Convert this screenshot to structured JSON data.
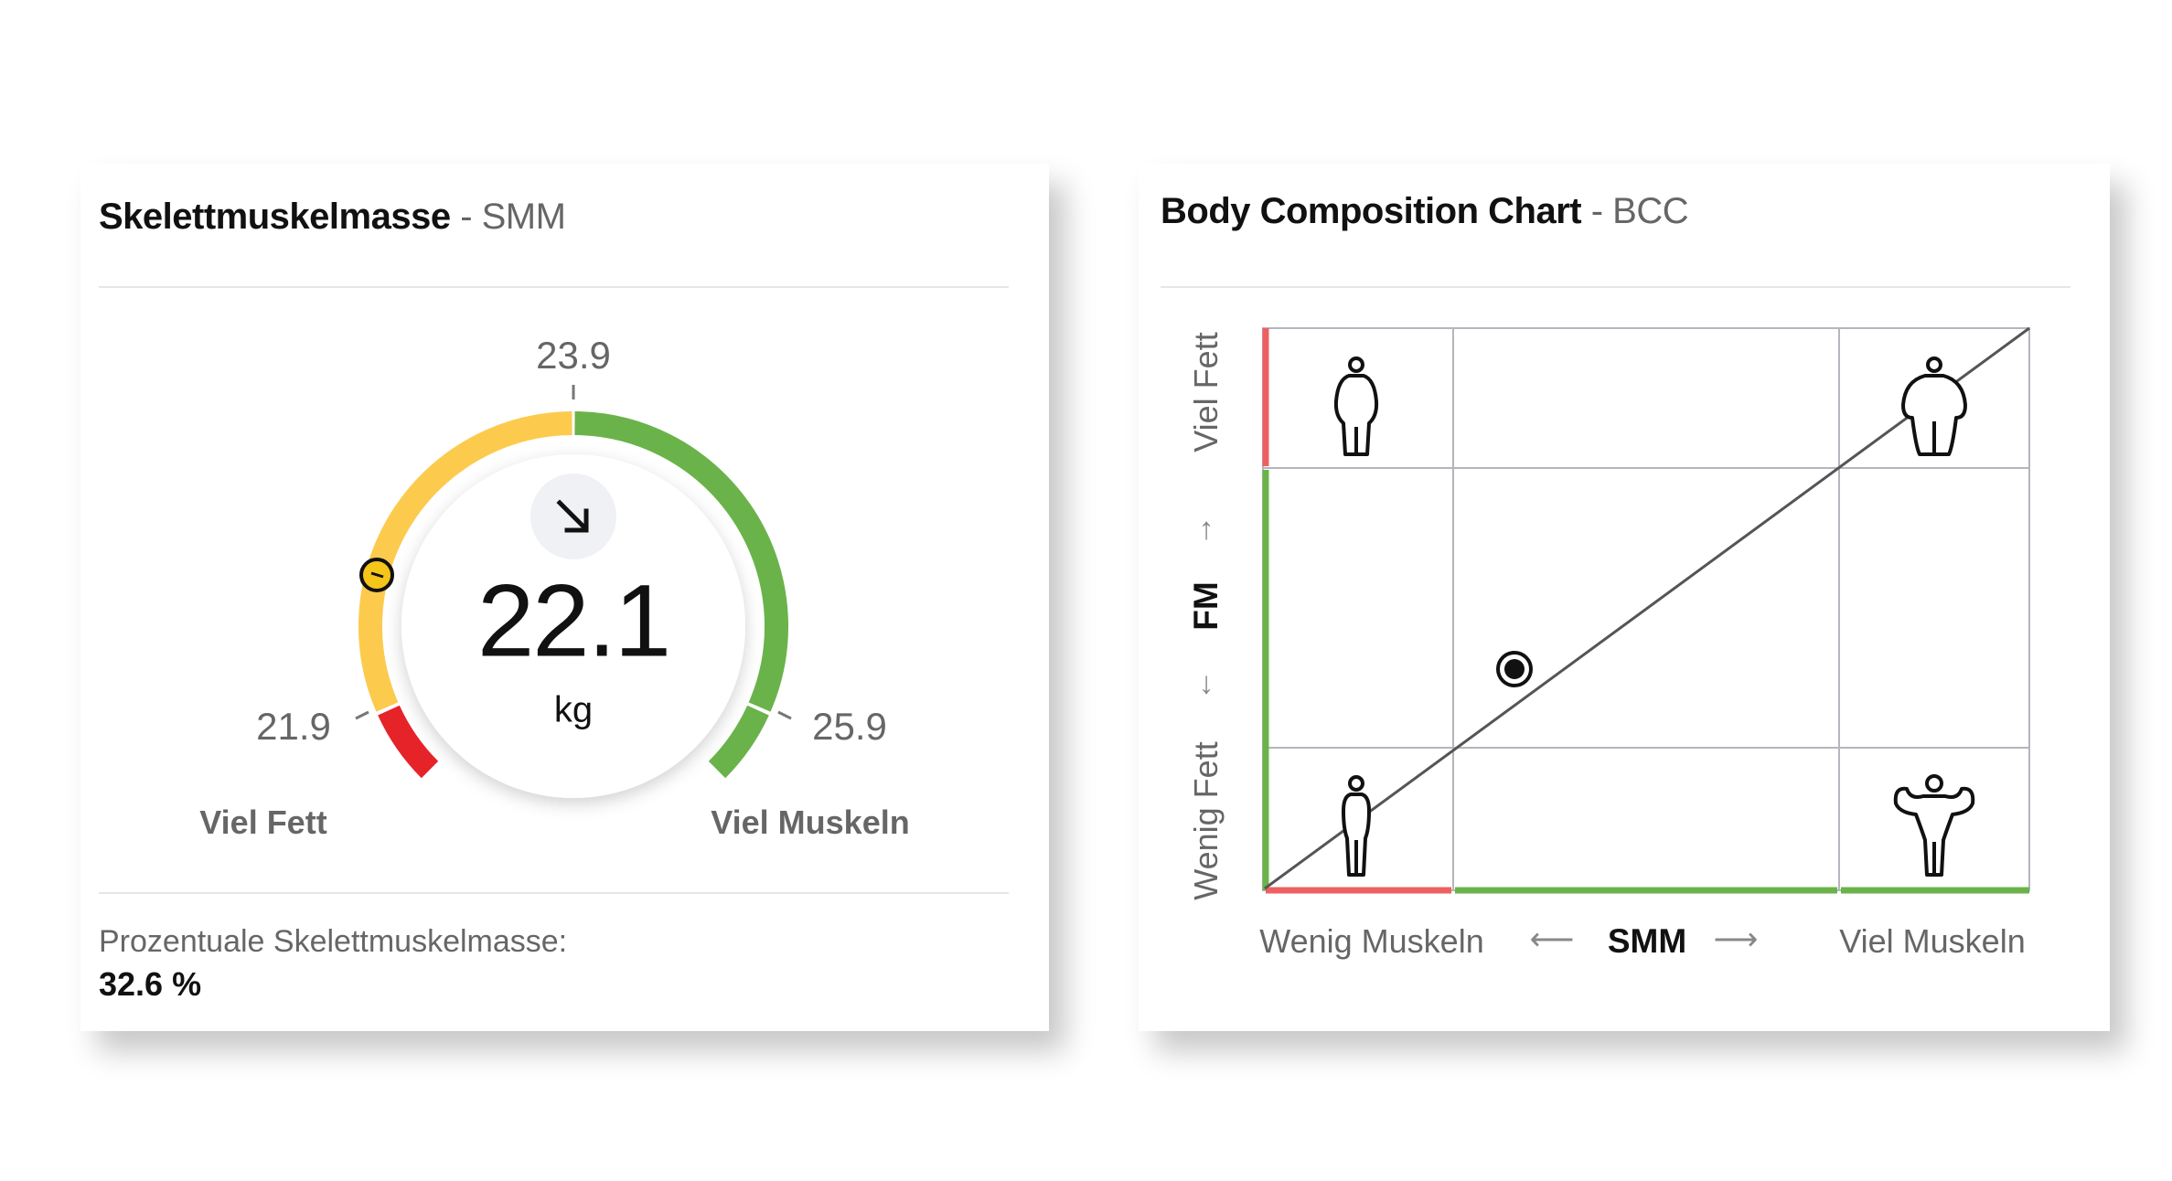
{
  "smm_card": {
    "title": "Skelettmuskelmasse",
    "title_sep": " - ",
    "subtitle": "SMM",
    "gauge": {
      "value": "22.1",
      "unit": "kg",
      "trend_icon": "arrow-down-right-icon",
      "ticks": {
        "low": "21.9",
        "mid": "23.9",
        "high": "25.9"
      },
      "zone_left": "Viel Fett",
      "zone_right": "Viel Muskeln",
      "colors": {
        "red": "#e52329",
        "yellow": "#fccb4e",
        "green": "#6ab34b"
      }
    },
    "percent_label": "Prozentuale Skelettmuskelmasse:",
    "percent_value": "32.6 %"
  },
  "bcc_card": {
    "title": "Body Composition Chart",
    "title_sep": " - ",
    "subtitle": "BCC",
    "y_axis": {
      "top": "Viel Fett",
      "name": "FM",
      "bottom": "Wenig Fett"
    },
    "x_axis": {
      "left": "Wenig Muskeln",
      "name": "SMM",
      "right": "Viel Muskeln"
    },
    "arrows": {
      "up": "↑",
      "down": "↓",
      "left": "⟵",
      "right": "⟶"
    },
    "figures": [
      "person-slim-high-fat-icon",
      "person-obese-icon",
      "person-slim-icon",
      "person-muscular-icon"
    ],
    "colors": {
      "red": "#ee6060",
      "green": "#6ab34b",
      "grid": "#b5b5bd"
    }
  }
}
